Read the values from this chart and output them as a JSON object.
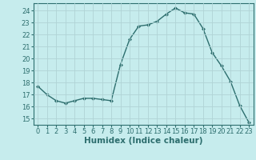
{
  "x": [
    0,
    1,
    2,
    3,
    4,
    5,
    6,
    7,
    8,
    9,
    10,
    11,
    12,
    13,
    14,
    15,
    16,
    17,
    18,
    19,
    20,
    21,
    22,
    23
  ],
  "y": [
    17.7,
    17.0,
    16.5,
    16.3,
    16.5,
    16.7,
    16.7,
    16.6,
    16.5,
    19.5,
    21.6,
    22.7,
    22.8,
    23.1,
    23.7,
    24.2,
    23.8,
    23.7,
    22.5,
    20.5,
    19.4,
    18.1,
    16.1,
    14.7
  ],
  "line_color": "#2d6e6e",
  "bg_color": "#c6eced",
  "grid_color": "#b0d4d6",
  "xlabel": "Humidex (Indice chaleur)",
  "ylim": [
    14.5,
    24.6
  ],
  "yticks": [
    15,
    16,
    17,
    18,
    19,
    20,
    21,
    22,
    23,
    24
  ],
  "xticks": [
    0,
    1,
    2,
    3,
    4,
    5,
    6,
    7,
    8,
    9,
    10,
    11,
    12,
    13,
    14,
    15,
    16,
    17,
    18,
    19,
    20,
    21,
    22,
    23
  ],
  "marker": "D",
  "marker_size": 2.0,
  "line_width": 1.0,
  "xlabel_fontsize": 7.5,
  "tick_fontsize": 6.0
}
